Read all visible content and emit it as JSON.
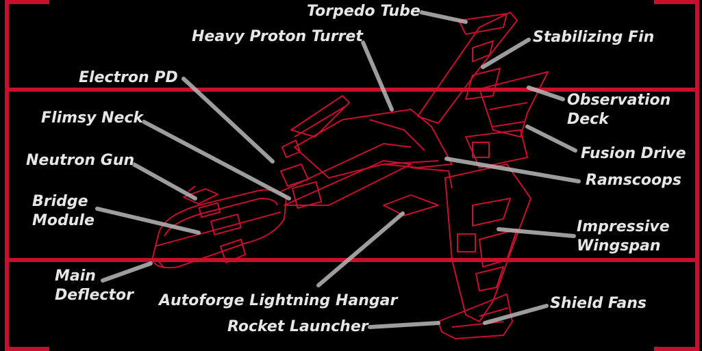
{
  "colors": {
    "background": "#000000",
    "frame": "#c8102e",
    "ship_line": "#c8102e",
    "label_text": "#e6e6e6",
    "pointer": "#b8b8b8"
  },
  "labels": {
    "torpedo_tube": "Torpedo Tube",
    "heavy_proton_turret": "Heavy Proton Turret",
    "stabilizing_fin": "Stabilizing Fin",
    "electron_pd": "Electron PD",
    "observation_deck_1": "Observation",
    "observation_deck_2": "Deck",
    "flimsy_neck": "Flimsy Neck",
    "fusion_drive": "Fusion Drive",
    "neutron_gun": "Neutron Gun",
    "ramscoops": "Ramscoops",
    "bridge_module_1": "Bridge",
    "bridge_module_2": "Module",
    "impressive_wingspan_1": "Impressive",
    "impressive_wingspan_2": "Wingspan",
    "main_deflector_1": "Main",
    "main_deflector_2": "Deflector",
    "autoforge_lightning_hangar": "Autoforge Lightning Hangar",
    "shield_fans": "Shield Fans",
    "rocket_launcher": "Rocket Launcher"
  }
}
